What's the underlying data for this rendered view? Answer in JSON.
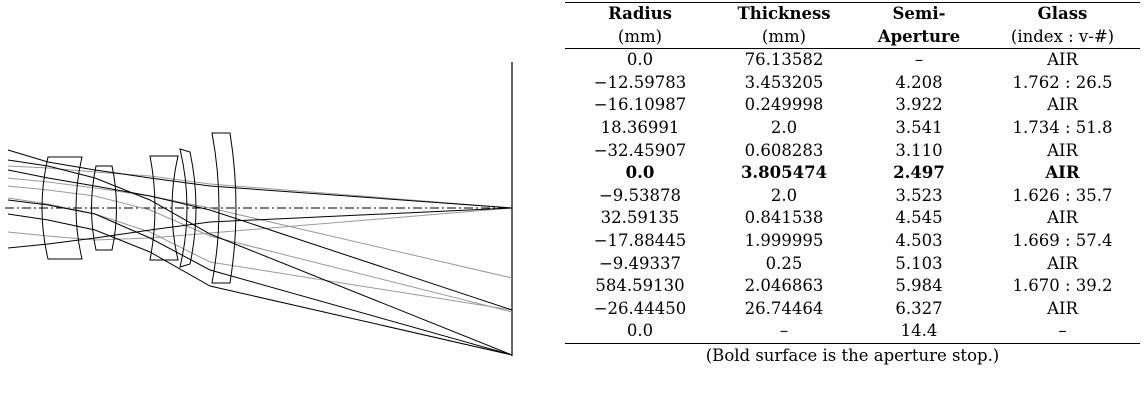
{
  "table": {
    "headers_top": [
      "Radius",
      "Thickness",
      "Semi-",
      "Glass"
    ],
    "headers_sub": [
      "(mm)",
      "(mm)",
      "Aperture",
      "(index : v-#)"
    ],
    "rows": [
      [
        "0.0",
        "76.13582",
        "–",
        "AIR"
      ],
      [
        "−12.59783",
        "3.453205",
        "4.208",
        "1.762 : 26.5"
      ],
      [
        "−16.10987",
        "0.249998",
        "3.922",
        "AIR"
      ],
      [
        "18.36991",
        "2.0",
        "3.541",
        "1.734 : 51.8"
      ],
      [
        "−32.45907",
        "0.608283",
        "3.110",
        "AIR"
      ],
      [
        "0.0",
        "3.805474",
        "2.497",
        "AIR"
      ],
      [
        "−9.53878",
        "2.0",
        "3.523",
        "1.626 : 35.7"
      ],
      [
        "32.59135",
        "0.841538",
        "4.545",
        "AIR"
      ],
      [
        "−17.88445",
        "1.999995",
        "4.503",
        "1.669 : 57.4"
      ],
      [
        "−9.49337",
        "0.25",
        "5.103",
        "AIR"
      ],
      [
        "584.59130",
        "2.046863",
        "5.984",
        "1.670 : 39.2"
      ],
      [
        "−26.44450",
        "26.74464",
        "6.327",
        "AIR"
      ],
      [
        "0.0",
        "–",
        "14.4",
        "–"
      ]
    ],
    "stop_row_index": 5,
    "caption": "(Bold surface is the aperture stop.)"
  },
  "diagram": {
    "colors": {
      "ray_dark": "#000000",
      "ray_light": "#9a9a9a",
      "lens": "#000000"
    }
  }
}
